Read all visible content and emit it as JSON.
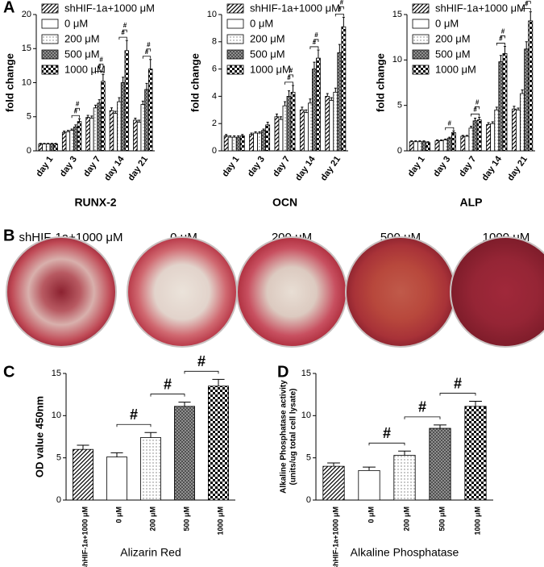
{
  "panel_labels": [
    "A",
    "B",
    "C",
    "D"
  ],
  "dishes": {
    "labels": [
      "shHIF-1a+1000 μM",
      "0 μM",
      "200 μM",
      "500 μM",
      "1000 μM"
    ]
  },
  "chart_data": [
    {
      "type": "bar",
      "ylabel": [
        "fold change"
      ],
      "xlabel": "RUNX-2",
      "categories": [
        "day 1",
        "day 3",
        "day 7",
        "day 14",
        "day 21"
      ],
      "ylim": [
        0,
        20
      ],
      "yticks": [
        0,
        5,
        10,
        15,
        20
      ],
      "series": [
        {
          "name": "shHIF-1a+1000 μM",
          "pattern": "hatch",
          "values": [
            1.0,
            2.7,
            4.9,
            5.9,
            4.5
          ],
          "errors": [
            0.1,
            0.2,
            0.3,
            0.4,
            0.3
          ]
        },
        {
          "name": "0 μM",
          "pattern": "white",
          "values": [
            1.0,
            2.8,
            4.8,
            5.5,
            4.2
          ],
          "errors": [
            0.1,
            0.2,
            0.3,
            0.3,
            0.3
          ]
        },
        {
          "name": "200 μM",
          "pattern": "dots",
          "values": [
            1.0,
            3.0,
            6.3,
            7.2,
            6.8
          ],
          "errors": [
            0.1,
            0.2,
            0.4,
            0.6,
            0.5
          ]
        },
        {
          "name": "500 μM",
          "pattern": "cross",
          "values": [
            1.0,
            3.5,
            7.0,
            10.0,
            9.0
          ],
          "errors": [
            0.1,
            0.3,
            0.5,
            0.8,
            0.9
          ]
        },
        {
          "name": "1000 μM",
          "pattern": "checker",
          "values": [
            1.0,
            4.3,
            10.2,
            14.7,
            12.0
          ],
          "errors": [
            0.1,
            0.4,
            1.0,
            1.5,
            1.4
          ]
        }
      ],
      "annotations": [
        {
          "text": "#",
          "category": "day 3",
          "pair": [
            "200 μM",
            "1000 μM"
          ]
        },
        {
          "text": "#",
          "category": "day 3",
          "pair": [
            "500 μM",
            "1000 μM"
          ]
        },
        {
          "text": "#",
          "category": "day 7",
          "pair": [
            "200 μM",
            "1000 μM"
          ]
        },
        {
          "text": "#",
          "category": "day 7",
          "pair": [
            "500 μM",
            "1000 μM"
          ]
        },
        {
          "text": "#",
          "category": "day 14",
          "pair": [
            "200 μM",
            "1000 μM"
          ]
        },
        {
          "text": "#",
          "category": "day 14",
          "pair": [
            "500 μM",
            "1000 μM"
          ]
        },
        {
          "text": "#",
          "category": "day 21",
          "pair": [
            "200 μM",
            "1000 μM"
          ]
        },
        {
          "text": "#",
          "category": "day 21",
          "pair": [
            "500 μM",
            "1000 μM"
          ]
        }
      ]
    },
    {
      "type": "bar",
      "ylabel": [
        "fold change"
      ],
      "xlabel": "OCN",
      "categories": [
        "day 1",
        "day 3",
        "day 7",
        "day 14",
        "day 21"
      ],
      "ylim": [
        0,
        10
      ],
      "yticks": [
        0,
        2,
        4,
        6,
        8,
        10
      ],
      "series": [
        {
          "name": "shHIF-1a+1000 μM",
          "pattern": "hatch",
          "values": [
            1.1,
            1.2,
            2.5,
            3.0,
            4.0
          ],
          "errors": [
            0.1,
            0.1,
            0.2,
            0.2,
            0.2
          ]
        },
        {
          "name": "0 μM",
          "pattern": "white",
          "values": [
            1.0,
            1.3,
            2.3,
            2.8,
            3.7
          ],
          "errors": [
            0.1,
            0.1,
            0.2,
            0.2,
            0.2
          ]
        },
        {
          "name": "200 μM",
          "pattern": "dots",
          "values": [
            1.0,
            1.3,
            3.3,
            3.5,
            4.3
          ],
          "errors": [
            0.1,
            0.1,
            0.3,
            0.3,
            0.3
          ]
        },
        {
          "name": "500 μM",
          "pattern": "cross",
          "values": [
            1.0,
            1.5,
            4.0,
            6.0,
            7.2
          ],
          "errors": [
            0.1,
            0.1,
            0.4,
            0.5,
            0.6
          ]
        },
        {
          "name": "1000 μM",
          "pattern": "checker",
          "values": [
            1.1,
            1.9,
            4.3,
            6.8,
            9.1
          ],
          "errors": [
            0.1,
            0.2,
            0.5,
            0.6,
            0.7
          ]
        }
      ],
      "annotations": [
        {
          "text": "#",
          "category": "day 7",
          "pair": [
            "200 μM",
            "1000 μM"
          ]
        },
        {
          "text": "#",
          "category": "day 7",
          "pair": [
            "500 μM",
            "1000 μM"
          ]
        },
        {
          "text": "#",
          "category": "day 14",
          "pair": [
            "200 μM",
            "1000 μM"
          ]
        },
        {
          "text": "#",
          "category": "day 14",
          "pair": [
            "500 μM",
            "1000 μM"
          ]
        },
        {
          "text": "#",
          "category": "day 21",
          "pair": [
            "200 μM",
            "1000 μM"
          ]
        },
        {
          "text": "#",
          "category": "day 21",
          "pair": [
            "500 μM",
            "1000 μM"
          ]
        }
      ]
    },
    {
      "type": "bar",
      "ylabel": [
        "fold change"
      ],
      "xlabel": "ALP",
      "categories": [
        "day 1",
        "day 3",
        "day 7",
        "day 14",
        "day 21"
      ],
      "ylim": [
        0,
        15
      ],
      "yticks": [
        0,
        5,
        10,
        15
      ],
      "series": [
        {
          "name": "shHIF-1a+1000 μM",
          "pattern": "hatch",
          "values": [
            1.0,
            1.1,
            1.6,
            2.9,
            4.6
          ],
          "errors": [
            0.1,
            0.1,
            0.1,
            0.2,
            0.3
          ]
        },
        {
          "name": "0 μM",
          "pattern": "white",
          "values": [
            1.0,
            1.1,
            1.6,
            3.0,
            4.5
          ],
          "errors": [
            0.1,
            0.1,
            0.1,
            0.2,
            0.2
          ]
        },
        {
          "name": "200 μM",
          "pattern": "dots",
          "values": [
            1.0,
            1.2,
            2.5,
            4.5,
            6.3
          ],
          "errors": [
            0.1,
            0.1,
            0.2,
            0.3,
            0.4
          ]
        },
        {
          "name": "500 μM",
          "pattern": "cross",
          "values": [
            1.0,
            1.4,
            3.3,
            9.8,
            11.2
          ],
          "errors": [
            0.1,
            0.1,
            0.3,
            0.7,
            0.8
          ]
        },
        {
          "name": "1000 μM",
          "pattern": "checker",
          "values": [
            0.9,
            2.0,
            3.4,
            10.7,
            14.3
          ],
          "errors": [
            0.1,
            0.2,
            0.3,
            0.8,
            1.0
          ]
        }
      ],
      "annotations": [
        {
          "text": "#",
          "category": "day 3",
          "pair": [
            "200 μM",
            "1000 μM"
          ]
        },
        {
          "text": "#",
          "category": "day 7",
          "pair": [
            "200 μM",
            "1000 μM"
          ]
        },
        {
          "text": "#",
          "category": "day 7",
          "pair": [
            "500 μM",
            "1000 μM"
          ]
        },
        {
          "text": "#",
          "category": "day 14",
          "pair": [
            "200 μM",
            "1000 μM"
          ]
        },
        {
          "text": "#",
          "category": "day 14",
          "pair": [
            "500 μM",
            "1000 μM"
          ]
        },
        {
          "text": "#",
          "category": "day 21",
          "pair": [
            "200 μM",
            "1000 μM"
          ]
        },
        {
          "text": "#",
          "category": "day 21",
          "pair": [
            "500 μM",
            "1000 μM"
          ]
        }
      ]
    },
    {
      "type": "bar",
      "ylabel": [
        "OD value 450nm"
      ],
      "xlabel": "Alizarin Red",
      "categories": [
        "shHIF-1a+1000 μM",
        "0 μM",
        "200 μM",
        "500 μM",
        "1000 μM"
      ],
      "patterns": [
        "hatch",
        "white",
        "dots",
        "cross",
        "checker"
      ],
      "values": [
        6.0,
        5.1,
        7.4,
        11.1,
        13.5
      ],
      "errors": [
        0.5,
        0.5,
        0.6,
        0.5,
        0.8
      ],
      "ylim": [
        0,
        15
      ],
      "yticks": [
        0,
        5,
        10,
        15
      ],
      "annotations": [
        {
          "text": "#",
          "pair": [
            "0 μM",
            "200 μM"
          ]
        },
        {
          "text": "#",
          "pair": [
            "200 μM",
            "500 μM"
          ]
        },
        {
          "text": "#",
          "pair": [
            "500 μM",
            "1000 μM"
          ]
        }
      ]
    },
    {
      "type": "bar",
      "ylabel": [
        "Alkaline Phosphatase activity",
        "(units/ug total cell lysate)"
      ],
      "xlabel": "Alkaline Phosphatase",
      "categories": [
        "shHIF-1a+1000 μM",
        "0 μM",
        "200 μM",
        "500 μM",
        "1000 μM"
      ],
      "patterns": [
        "hatch",
        "white",
        "dots",
        "cross",
        "checker"
      ],
      "values": [
        4.0,
        3.5,
        5.3,
        8.5,
        11.1
      ],
      "errors": [
        0.4,
        0.4,
        0.5,
        0.4,
        0.6
      ],
      "ylim": [
        0,
        15
      ],
      "yticks": [
        0,
        5,
        10,
        15
      ],
      "annotations": [
        {
          "text": "#",
          "pair": [
            "0 μM",
            "200 μM"
          ]
        },
        {
          "text": "#",
          "pair": [
            "200 μM",
            "500 μM"
          ]
        },
        {
          "text": "#",
          "pair": [
            "500 μM",
            "1000 μM"
          ]
        }
      ]
    }
  ]
}
